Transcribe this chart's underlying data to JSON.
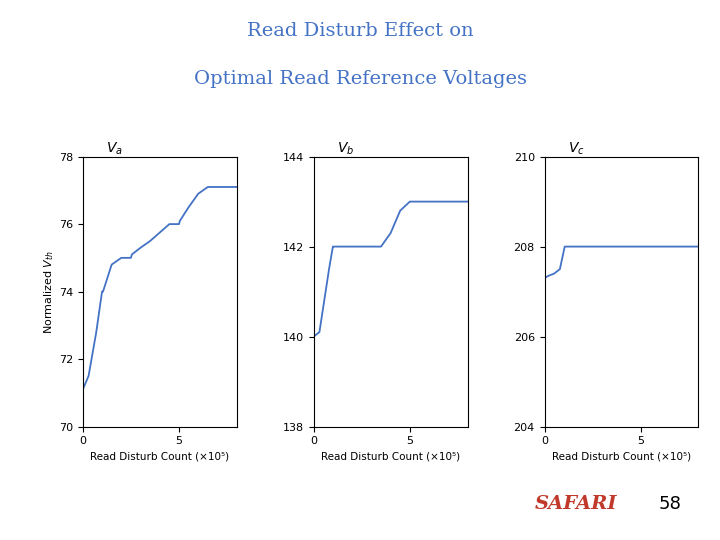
{
  "title_line1": "Read Disturb Effect on",
  "title_line2": "Optimal Read Reference Voltages",
  "title_color": "#4472C4",
  "line_color": "#4472C4",
  "xlabel": "Read Disturb Count (×10⁵)",
  "ylabel": "Normalized $V_{th}$",
  "page_number": "58",
  "safari_color": "#C0392B",
  "subplot_titles": [
    "$V_a$",
    "$V_b$",
    "$V_c$"
  ],
  "Va_x": [
    0,
    0.3,
    0.7,
    1.0,
    1.05,
    1.5,
    2.0,
    2.5,
    2.55,
    3.0,
    3.5,
    4.5,
    5.0,
    5.05,
    5.5,
    6.0,
    6.5,
    7.0,
    7.5,
    8.0
  ],
  "Va_y": [
    71.1,
    71.5,
    72.8,
    74.0,
    74.0,
    74.8,
    75.0,
    75.0,
    75.1,
    75.3,
    75.5,
    76.0,
    76.0,
    76.1,
    76.5,
    76.9,
    77.1,
    77.1,
    77.1,
    77.1
  ],
  "Va_ylim": [
    70,
    78
  ],
  "Va_yticks": [
    70,
    72,
    74,
    76,
    78
  ],
  "Vb_x": [
    0,
    0.3,
    0.8,
    1.0,
    1.05,
    2.0,
    3.0,
    3.5,
    4.0,
    4.5,
    5.0,
    5.05,
    5.5,
    6.0,
    7.0,
    8.0
  ],
  "Vb_y": [
    140.0,
    140.1,
    141.5,
    142.0,
    142.0,
    142.0,
    142.0,
    142.0,
    142.3,
    142.8,
    143.0,
    143.0,
    143.0,
    143.0,
    143.0,
    143.0
  ],
  "Vb_ylim": [
    138,
    144
  ],
  "Vb_yticks": [
    138,
    140,
    142,
    144
  ],
  "Vc_x": [
    0,
    0.2,
    0.5,
    0.8,
    1.0,
    1.05,
    1.5,
    2.0,
    3.0,
    4.0,
    5.0,
    6.0,
    7.0,
    8.0
  ],
  "Vc_y": [
    207.3,
    207.35,
    207.4,
    207.5,
    207.9,
    208.0,
    208.0,
    208.0,
    208.0,
    208.0,
    208.0,
    208.0,
    208.0,
    208.0
  ],
  "Vc_ylim": [
    204,
    210
  ],
  "Vc_yticks": [
    204,
    206,
    208,
    210
  ],
  "xlim": [
    0,
    8
  ],
  "xticks": [
    0,
    5
  ],
  "background_color": "#ffffff"
}
